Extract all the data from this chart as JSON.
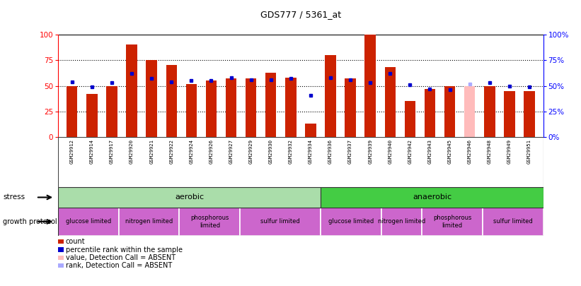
{
  "title": "GDS777 / 5361_at",
  "samples": [
    "GSM29912",
    "GSM29914",
    "GSM29917",
    "GSM29920",
    "GSM29921",
    "GSM29922",
    "GSM29924",
    "GSM29926",
    "GSM29927",
    "GSM29929",
    "GSM29930",
    "GSM29932",
    "GSM29934",
    "GSM29936",
    "GSM29937",
    "GSM29939",
    "GSM29940",
    "GSM29942",
    "GSM29943",
    "GSM29945",
    "GSM29946",
    "GSM29948",
    "GSM29949",
    "GSM29951"
  ],
  "count_vals": [
    50,
    42,
    50,
    90,
    75,
    70,
    52,
    55,
    57,
    57,
    63,
    58,
    13,
    80,
    57,
    100,
    68,
    35,
    47,
    50,
    50,
    50,
    45,
    45
  ],
  "rank_vals": [
    54,
    49,
    53,
    62,
    57,
    54,
    55,
    55,
    58,
    56,
    56,
    57,
    41,
    58,
    56,
    53,
    62,
    51,
    47,
    46,
    52,
    53,
    50,
    49
  ],
  "absent_indices": [
    20
  ],
  "bar_color": "#cc2200",
  "rank_color": "#0000cc",
  "absent_bar_color": "#ffbbbb",
  "absent_rank_color": "#aaaaff",
  "stress_split": 13,
  "aerobic_color": "#aaddaa",
  "anaerobic_color": "#44cc44",
  "growth_color": "#cc66cc",
  "growth_groups": [
    {
      "label": "glucose limited",
      "start": 0,
      "end": 3
    },
    {
      "label": "nitrogen limited",
      "start": 3,
      "end": 6
    },
    {
      "label": "phosphorous\nlimited",
      "start": 6,
      "end": 9
    },
    {
      "label": "sulfur limited",
      "start": 9,
      "end": 13
    },
    {
      "label": "glucose limited",
      "start": 13,
      "end": 16
    },
    {
      "label": "nitrogen limited",
      "start": 16,
      "end": 18
    },
    {
      "label": "phosphorous\nlimited",
      "start": 18,
      "end": 21
    },
    {
      "label": "sulfur limited",
      "start": 21,
      "end": 24
    }
  ],
  "legend_items": [
    {
      "color": "#cc2200",
      "label": "count"
    },
    {
      "color": "#0000cc",
      "label": "percentile rank within the sample"
    },
    {
      "color": "#ffbbbb",
      "label": "value, Detection Call = ABSENT"
    },
    {
      "color": "#aaaaff",
      "label": "rank, Detection Call = ABSENT"
    }
  ]
}
